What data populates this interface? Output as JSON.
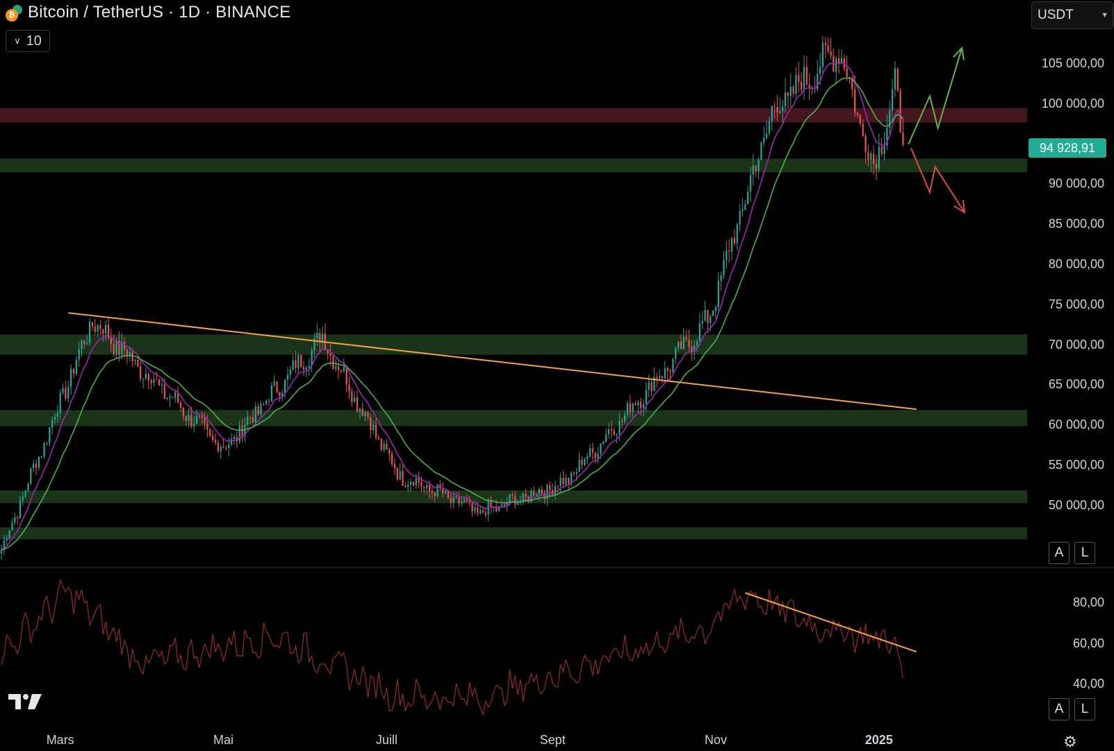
{
  "header": {
    "title": "Bitcoin / TetherUS · 1D · BINANCE",
    "indicator_label": "10",
    "currency": "USDT"
  },
  "price_axis": {
    "labels": [
      "105 000,00",
      "100 000,00",
      "90 000,00",
      "85 000,00",
      "80 000,00",
      "75 000,00",
      "70 000,00",
      "65 000,00",
      "60 000,00",
      "55 000,00",
      "50 000,00"
    ],
    "current_price": "94 928,91",
    "current_price_color": "#22ab94"
  },
  "rsi_axis": {
    "labels": [
      "80,00",
      "60,00",
      "40,00"
    ]
  },
  "time_axis": {
    "labels": [
      "Mars",
      "Mai",
      "Juill",
      "Sept",
      "Nov",
      "2025"
    ]
  },
  "scale_buttons": {
    "auto": "A",
    "log": "L"
  },
  "icons": {
    "logo": "tradingview-logo-icon",
    "settings": "settings-gear-icon"
  },
  "colors": {
    "background": "#000000",
    "bull": "#26a69a",
    "bear": "#ef5350",
    "support_zone": "#1e3a1c",
    "resistance_zone": "#4a1a20",
    "trendline": "#f7a440",
    "ema_fast": "#9c27b0",
    "ema_slow": "#4caf50",
    "rsi_line": "#8b2a2a",
    "scenario_up": "#6ab04c",
    "scenario_down": "#e04848"
  },
  "chart_data": [
    {
      "type": "candlestick",
      "title": "Bitcoin / TetherUS · 1D · BINANCE",
      "x_range": [
        "2024-02-08",
        "2025-01-10"
      ],
      "ylim": [
        43000,
        108500
      ],
      "key_points": [
        {
          "date": "2024-02-08",
          "close": 44500
        },
        {
          "date": "2024-03-13",
          "close": 73000
        },
        {
          "date": "2024-05-01",
          "close": 57000
        },
        {
          "date": "2024-06-07",
          "close": 71000
        },
        {
          "date": "2024-07-05",
          "close": 54000
        },
        {
          "date": "2024-08-05",
          "close": 49000
        },
        {
          "date": "2024-09-06",
          "close": 53000
        },
        {
          "date": "2024-10-29",
          "close": 73000
        },
        {
          "date": "2024-11-22",
          "close": 99000
        },
        {
          "date": "2024-12-17",
          "close": 107000
        },
        {
          "date": "2024-12-30",
          "close": 92000
        },
        {
          "date": "2025-01-07",
          "close": 102000
        },
        {
          "date": "2025-01-10",
          "close": 94928.91
        }
      ],
      "zones": [
        {
          "from": 97700,
          "to": 99500,
          "kind": "resistance"
        },
        {
          "from": 91500,
          "to": 93200,
          "kind": "support"
        },
        {
          "from": 68800,
          "to": 71300,
          "kind": "support"
        },
        {
          "from": 59900,
          "to": 61900,
          "kind": "support"
        },
        {
          "from": 50300,
          "to": 51900,
          "kind": "support"
        },
        {
          "from": 45800,
          "to": 47300,
          "kind": "support"
        }
      ],
      "trendline": [
        {
          "date": "2024-03-04",
          "value": 74000
        },
        {
          "date": "2025-01-15",
          "value": 62000
        }
      ],
      "scenarios": {
        "bullish": [
          {
            "date": "2025-01-12",
            "value": 95000
          },
          {
            "date": "2025-01-20",
            "value": 101000
          },
          {
            "date": "2025-01-23",
            "value": 97000
          },
          {
            "date": "2025-02-01",
            "value": 107000
          }
        ],
        "bearish": [
          {
            "date": "2025-01-13",
            "value": 94500
          },
          {
            "date": "2025-01-20",
            "value": 89000
          },
          {
            "date": "2025-01-22",
            "value": 92200
          },
          {
            "date": "2025-02-02",
            "value": 86500
          }
        ]
      }
    },
    {
      "type": "line",
      "title": "",
      "ylim": [
        35,
        92
      ],
      "key_points": [
        {
          "date": "2024-02-08",
          "value": 55
        },
        {
          "date": "2024-03-04",
          "value": 86
        },
        {
          "date": "2024-04-01",
          "value": 50
        },
        {
          "date": "2024-05-20",
          "value": 64
        },
        {
          "date": "2024-07-05",
          "value": 34
        },
        {
          "date": "2024-08-05",
          "value": 33
        },
        {
          "date": "2024-10-29",
          "value": 68
        },
        {
          "date": "2024-11-12",
          "value": 85
        },
        {
          "date": "2024-12-10",
          "value": 68
        },
        {
          "date": "2025-01-07",
          "value": 61
        },
        {
          "date": "2025-01-10",
          "value": 43
        }
      ],
      "trendline": [
        {
          "date": "2024-11-12",
          "value": 85
        },
        {
          "date": "2025-01-15",
          "value": 56
        }
      ]
    }
  ]
}
